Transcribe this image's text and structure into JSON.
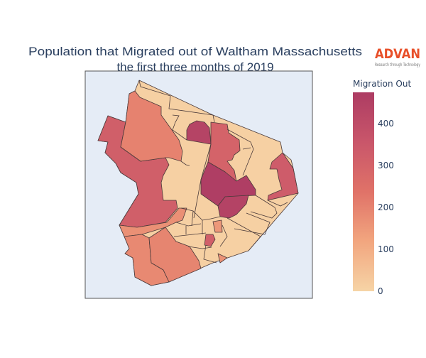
{
  "title_line1": "Population that Migrated out of Waltham Massachusetts",
  "title_line2": "the first three months of 2019",
  "logo": {
    "name": "ADVAN",
    "tagline": "Research through Technology",
    "color": "#e8502a"
  },
  "chart_data": {
    "type": "choropleth",
    "title": "Population that Migrated out of Waltham Massachusetts the first three months of 2019",
    "colorbar": {
      "title": "Migration Out",
      "range": [
        0,
        475
      ],
      "ticks": [
        0,
        100,
        200,
        300,
        400
      ],
      "tick_labels": [
        "0",
        "100",
        "200",
        "300",
        "400"
      ],
      "colorscale": [
        "#f6d4a6",
        "#f2a67f",
        "#e07268",
        "#c9566a",
        "#ad3c63"
      ]
    },
    "background_color": "#e5ecf6",
    "region_values": [
      10,
      320,
      200,
      440,
      300,
      465,
      445,
      330,
      170,
      185,
      195,
      150,
      320,
      165
    ]
  }
}
